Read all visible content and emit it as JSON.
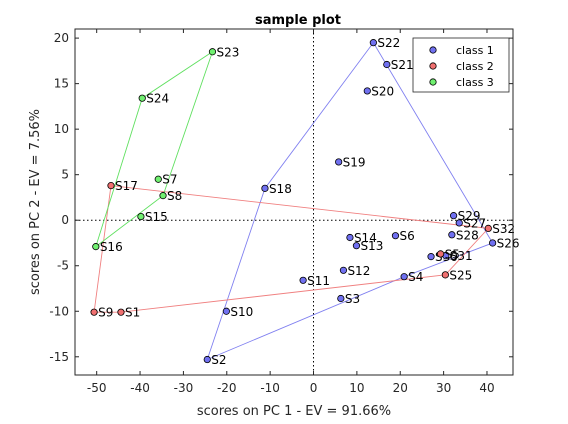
{
  "chart_data": {
    "type": "scatter",
    "title": "sample plot",
    "xlabel": "scores on PC 1 - EV = 91.66%",
    "ylabel": "scores on PC 2 - EV = 7.56%",
    "xlim": [
      -55,
      46
    ],
    "ylim": [
      -17,
      21
    ],
    "xticks": [
      -50,
      -40,
      -30,
      -20,
      -10,
      0,
      10,
      20,
      30,
      40
    ],
    "yticks": [
      -15,
      -10,
      -5,
      0,
      5,
      10,
      15,
      20
    ],
    "grid": false,
    "zero_lines": "dotted",
    "legend_position": "top-right",
    "series": [
      {
        "name": "class 1",
        "color": "#7070f0",
        "hull_color": "#8080f0",
        "points": [
          {
            "label": "S2",
            "x": -24.5,
            "y": -15.3
          },
          {
            "label": "S3",
            "x": 6.3,
            "y": -8.6
          },
          {
            "label": "S4",
            "x": 20.9,
            "y": -6.2
          },
          {
            "label": "S6",
            "x": 18.9,
            "y": -1.7
          },
          {
            "label": "S10",
            "x": -20.1,
            "y": -10.0
          },
          {
            "label": "S11",
            "x": -2.4,
            "y": -6.6
          },
          {
            "label": "S12",
            "x": 6.9,
            "y": -5.5
          },
          {
            "label": "S13",
            "x": 9.9,
            "y": -2.8
          },
          {
            "label": "S14",
            "x": 8.4,
            "y": -1.9
          },
          {
            "label": "S18",
            "x": -11.2,
            "y": 3.5
          },
          {
            "label": "S19",
            "x": 5.8,
            "y": 6.4
          },
          {
            "label": "S20",
            "x": 12.4,
            "y": 14.2
          },
          {
            "label": "S21",
            "x": 16.9,
            "y": 17.1
          },
          {
            "label": "S22",
            "x": 13.8,
            "y": 19.5
          },
          {
            "label": "S26",
            "x": 41.3,
            "y": -2.5
          },
          {
            "label": "S27",
            "x": 33.6,
            "y": -0.3
          },
          {
            "label": "S28",
            "x": 31.9,
            "y": -1.6
          },
          {
            "label": "S29",
            "x": 32.3,
            "y": 0.5
          },
          {
            "label": "S30",
            "x": 27.1,
            "y": -4.0
          },
          {
            "label": "S31",
            "x": 30.5,
            "y": -3.9
          }
        ],
        "hull": [
          "S2",
          "S4",
          "S26",
          "S22",
          "S18"
        ]
      },
      {
        "name": "class 2",
        "color": "#f07070",
        "hull_color": "#f08080",
        "points": [
          {
            "label": "S1",
            "x": -44.4,
            "y": -10.1
          },
          {
            "label": "S5",
            "x": 29.3,
            "y": -3.7
          },
          {
            "label": "S9",
            "x": -50.6,
            "y": -10.1
          },
          {
            "label": "S17",
            "x": -46.7,
            "y": 3.8
          },
          {
            "label": "S25",
            "x": 30.4,
            "y": -6.0
          },
          {
            "label": "S32",
            "x": 40.3,
            "y": -0.9
          }
        ],
        "hull": [
          "S9",
          "S1",
          "S25",
          "S32",
          "S17"
        ]
      },
      {
        "name": "class 3",
        "color": "#70f070",
        "hull_color": "#60e060",
        "points": [
          {
            "label": "S7",
            "x": -35.8,
            "y": 4.5
          },
          {
            "label": "S8",
            "x": -34.7,
            "y": 2.7
          },
          {
            "label": "S15",
            "x": -39.8,
            "y": 0.4
          },
          {
            "label": "S16",
            "x": -50.2,
            "y": -2.9
          },
          {
            "label": "S23",
            "x": -23.3,
            "y": 18.5
          },
          {
            "label": "S24",
            "x": -39.5,
            "y": 13.4
          }
        ],
        "hull": [
          "S16",
          "S8",
          "S23",
          "S24"
        ]
      }
    ]
  }
}
